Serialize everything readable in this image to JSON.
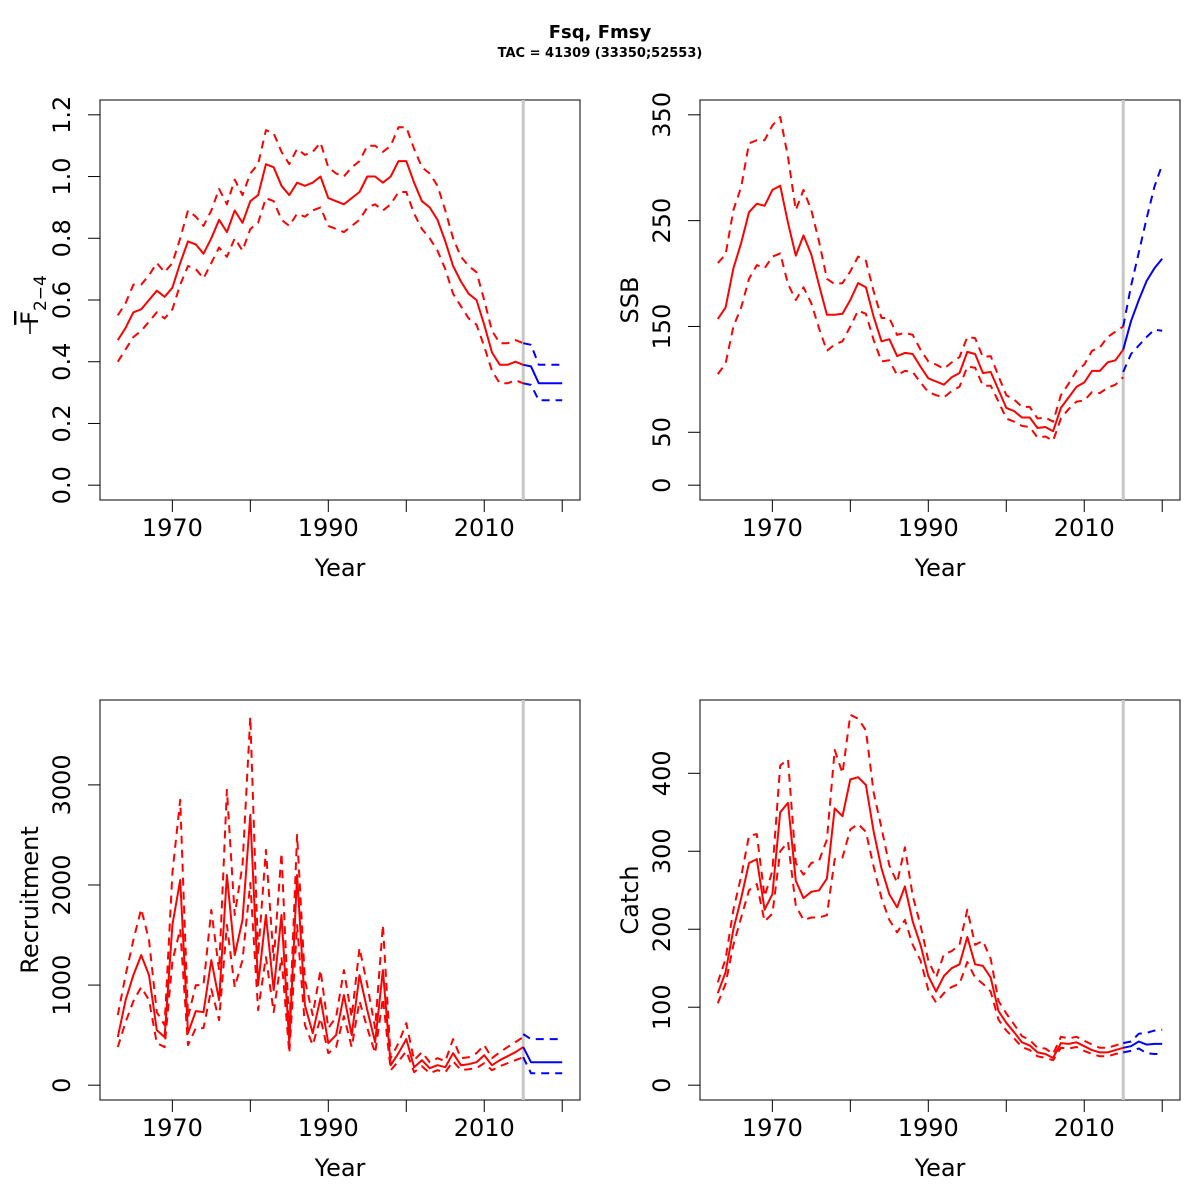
{
  "title": "Fsq, Fmsy",
  "subtitle": "TAC = 41309 (33350;52553)",
  "colors": {
    "history": "#ff0000",
    "forecast": "#0000ff",
    "divider": "#c8c8c8"
  },
  "chart_data": [
    {
      "id": "fbar",
      "type": "line",
      "xlabel": "Year",
      "ylabel": "F2-4",
      "ylabel_main": "F",
      "ylabel_sub": "2−4",
      "xlim": [
        1963,
        2020
      ],
      "ylim": [
        0,
        1.2
      ],
      "xticks": [
        1970,
        1990,
        2010
      ],
      "yticks": [
        0.0,
        0.2,
        0.4,
        0.6,
        0.8,
        1.0,
        1.2
      ],
      "yticklabels": [
        "0.0",
        "0.2",
        "0.4",
        "0.6",
        "0.8",
        "1.0",
        "1.2"
      ],
      "divider_year": 2015,
      "history": {
        "x": [
          1963,
          1964,
          1965,
          1966,
          1967,
          1968,
          1969,
          1970,
          1971,
          1972,
          1973,
          1974,
          1975,
          1976,
          1977,
          1978,
          1979,
          1980,
          1981,
          1982,
          1983,
          1984,
          1985,
          1986,
          1987,
          1988,
          1989,
          1990,
          1991,
          1992,
          1993,
          1994,
          1995,
          1996,
          1997,
          1998,
          1999,
          2000,
          2001,
          2002,
          2003,
          2004,
          2005,
          2006,
          2007,
          2008,
          2009,
          2010,
          2011,
          2012,
          2013,
          2014,
          2015
        ],
        "y": [
          0.47,
          0.51,
          0.56,
          0.57,
          0.6,
          0.63,
          0.61,
          0.64,
          0.72,
          0.79,
          0.78,
          0.75,
          0.8,
          0.86,
          0.82,
          0.89,
          0.85,
          0.92,
          0.94,
          1.04,
          1.03,
          0.97,
          0.94,
          0.98,
          0.97,
          0.98,
          1.0,
          0.93,
          0.92,
          0.91,
          0.93,
          0.95,
          1.0,
          1.0,
          0.98,
          1.0,
          1.05,
          1.05,
          0.98,
          0.92,
          0.9,
          0.86,
          0.79,
          0.71,
          0.66,
          0.62,
          0.6,
          0.52,
          0.43,
          0.39,
          0.39,
          0.4,
          0.39
        ],
        "lower": [
          0.4,
          0.44,
          0.48,
          0.5,
          0.53,
          0.56,
          0.54,
          0.57,
          0.65,
          0.71,
          0.7,
          0.67,
          0.72,
          0.77,
          0.74,
          0.8,
          0.76,
          0.83,
          0.85,
          0.93,
          0.92,
          0.86,
          0.84,
          0.88,
          0.87,
          0.89,
          0.9,
          0.84,
          0.83,
          0.82,
          0.84,
          0.86,
          0.9,
          0.91,
          0.89,
          0.91,
          0.95,
          0.95,
          0.88,
          0.83,
          0.8,
          0.76,
          0.7,
          0.62,
          0.58,
          0.54,
          0.52,
          0.45,
          0.37,
          0.33,
          0.33,
          0.34,
          0.33
        ],
        "upper": [
          0.55,
          0.59,
          0.65,
          0.65,
          0.68,
          0.72,
          0.69,
          0.72,
          0.8,
          0.89,
          0.87,
          0.84,
          0.89,
          0.96,
          0.91,
          0.99,
          0.94,
          1.01,
          1.04,
          1.15,
          1.14,
          1.08,
          1.04,
          1.09,
          1.07,
          1.08,
          1.11,
          1.03,
          1.01,
          1.0,
          1.03,
          1.05,
          1.1,
          1.1,
          1.08,
          1.1,
          1.16,
          1.16,
          1.09,
          1.03,
          1.01,
          0.97,
          0.89,
          0.8,
          0.74,
          0.71,
          0.69,
          0.6,
          0.5,
          0.46,
          0.46,
          0.47,
          0.46
        ]
      },
      "forecast": {
        "x": [
          2015,
          2016,
          2017,
          2018,
          2019,
          2020
        ],
        "y": [
          0.39,
          0.385,
          0.33,
          0.33,
          0.33,
          0.33
        ],
        "lower": [
          0.33,
          0.325,
          0.275,
          0.275,
          0.275,
          0.275
        ],
        "upper": [
          0.46,
          0.455,
          0.39,
          0.39,
          0.39,
          0.39
        ]
      }
    },
    {
      "id": "ssb",
      "type": "line",
      "xlabel": "Year",
      "ylabel": "SSB",
      "xlim": [
        1963,
        2020
      ],
      "ylim": [
        0,
        350
      ],
      "xticks": [
        1970,
        1990,
        2010
      ],
      "yticks": [
        0,
        50,
        150,
        250,
        350
      ],
      "yticklabels": [
        "0",
        "50",
        "150",
        "250",
        "350"
      ],
      "divider_year": 2015,
      "history": {
        "x": [
          1963,
          1964,
          1965,
          1966,
          1967,
          1968,
          1969,
          1970,
          1971,
          1972,
          1973,
          1974,
          1975,
          1976,
          1977,
          1978,
          1979,
          1980,
          1981,
          1982,
          1983,
          1984,
          1985,
          1986,
          1987,
          1988,
          1989,
          1990,
          1991,
          1992,
          1993,
          1994,
          1995,
          1996,
          1997,
          1998,
          1999,
          2000,
          2001,
          2002,
          2003,
          2004,
          2005,
          2006,
          2007,
          2008,
          2009,
          2010,
          2011,
          2012,
          2013,
          2014,
          2015
        ],
        "y": [
          157,
          168,
          205,
          229,
          258,
          266,
          264,
          279,
          283,
          248,
          217,
          236,
          218,
          189,
          161,
          161,
          162,
          175,
          191,
          187,
          159,
          136,
          138,
          122,
          125,
          124,
          112,
          101,
          98,
          95,
          102,
          106,
          126,
          124,
          106,
          107,
          90,
          73,
          70,
          64,
          64,
          54,
          55,
          51,
          73,
          83,
          93,
          97,
          108,
          108,
          116,
          118,
          128
        ],
        "lower": [
          105,
          115,
          150,
          168,
          195,
          208,
          205,
          216,
          219,
          190,
          175,
          187,
          172,
          148,
          127,
          133,
          136,
          150,
          165,
          162,
          137,
          117,
          118,
          104,
          108,
          107,
          97,
          88,
          85,
          83,
          89,
          93,
          112,
          111,
          94,
          94,
          79,
          63,
          60,
          56,
          55,
          45,
          46,
          42,
          63,
          72,
          79,
          80,
          88,
          87,
          92,
          95,
          102
        ],
        "upper": [
          210,
          218,
          260,
          282,
          323,
          326,
          326,
          340,
          348,
          310,
          260,
          279,
          260,
          230,
          195,
          190,
          191,
          202,
          216,
          212,
          183,
          158,
          158,
          142,
          144,
          142,
          128,
          117,
          114,
          110,
          116,
          121,
          140,
          139,
          121,
          122,
          103,
          85,
          81,
          74,
          74,
          63,
          64,
          60,
          85,
          96,
          108,
          114,
          127,
          130,
          140,
          145,
          150
        ]
      },
      "forecast": {
        "x": [
          2015,
          2016,
          2017,
          2018,
          2019,
          2020
        ],
        "y": [
          128,
          155,
          175,
          193,
          205,
          214
        ],
        "lower": [
          107,
          124,
          132,
          140,
          147,
          146
        ],
        "upper": [
          150,
          188,
          220,
          252,
          282,
          303
        ]
      }
    },
    {
      "id": "recruitment",
      "type": "line",
      "xlabel": "Year",
      "ylabel": "Recruitment",
      "xlim": [
        1963,
        2020
      ],
      "ylim": [
        0,
        3700
      ],
      "xticks": [
        1970,
        1990,
        2010
      ],
      "yticks": [
        0,
        1000,
        2000,
        3000
      ],
      "yticklabels": [
        "0",
        "1000",
        "2000",
        "3000"
      ],
      "divider_year": 2015,
      "history": {
        "x": [
          1963,
          1964,
          1965,
          1966,
          1967,
          1968,
          1969,
          1970,
          1971,
          1972,
          1973,
          1974,
          1975,
          1976,
          1977,
          1978,
          1979,
          1980,
          1981,
          1982,
          1983,
          1984,
          1985,
          1986,
          1987,
          1988,
          1989,
          1990,
          1991,
          1992,
          1993,
          1994,
          1995,
          1996,
          1997,
          1998,
          1999,
          2000,
          2001,
          2002,
          2003,
          2004,
          2005,
          2006,
          2007,
          2008,
          2009,
          2010,
          2011,
          2012,
          2013,
          2014,
          2015
        ],
        "y": [
          480,
          850,
          1100,
          1300,
          1100,
          550,
          480,
          1600,
          2050,
          520,
          740,
          730,
          1250,
          850,
          2100,
          1300,
          1650,
          2700,
          1000,
          1700,
          950,
          1700,
          420,
          2100,
          800,
          520,
          870,
          420,
          500,
          900,
          500,
          1100,
          750,
          430,
          1150,
          200,
          320,
          460,
          180,
          250,
          170,
          200,
          180,
          320,
          200,
          210,
          230,
          300,
          200,
          250,
          290,
          330,
          380
        ],
        "lower": [
          380,
          630,
          840,
          980,
          850,
          420,
          380,
          1240,
          1560,
          400,
          570,
          570,
          960,
          650,
          1600,
          980,
          1250,
          2020,
          750,
          1280,
          730,
          1280,
          320,
          1600,
          600,
          400,
          670,
          320,
          380,
          690,
          380,
          840,
          570,
          320,
          870,
          150,
          240,
          340,
          130,
          190,
          120,
          150,
          130,
          240,
          150,
          160,
          170,
          220,
          150,
          190,
          220,
          250,
          280
        ],
        "upper": [
          700,
          1100,
          1450,
          1760,
          1450,
          730,
          600,
          2120,
          2850,
          680,
          1000,
          1000,
          1750,
          1150,
          2950,
          1700,
          2200,
          3680,
          1300,
          2350,
          1250,
          2320,
          540,
          2500,
          1050,
          700,
          1150,
          570,
          680,
          1150,
          680,
          1370,
          1000,
          570,
          1600,
          270,
          420,
          620,
          250,
          330,
          230,
          270,
          240,
          460,
          270,
          280,
          320,
          400,
          270,
          330,
          380,
          430,
          480
        ]
      },
      "forecast": {
        "x": [
          2015,
          2016,
          2017,
          2018,
          2019,
          2020
        ],
        "y": [
          380,
          230,
          230,
          230,
          230,
          230
        ],
        "lower": [
          280,
          120,
          120,
          120,
          120,
          120
        ],
        "upper": [
          510,
          460,
          460,
          460,
          460,
          460
        ]
      }
    },
    {
      "id": "catch",
      "type": "line",
      "xlabel": "Year",
      "ylabel": "Catch",
      "xlim": [
        1963,
        2020
      ],
      "ylim": [
        0,
        475
      ],
      "xticks": [
        1970,
        1990,
        2010
      ],
      "yticks": [
        0,
        100,
        200,
        300,
        400
      ],
      "yticklabels": [
        "0",
        "100",
        "200",
        "300",
        "400"
      ],
      "divider_year": 2015,
      "history": {
        "x": [
          1963,
          1964,
          1965,
          1966,
          1967,
          1968,
          1969,
          1970,
          1971,
          1972,
          1973,
          1974,
          1975,
          1976,
          1977,
          1978,
          1979,
          1980,
          1981,
          1982,
          1983,
          1984,
          1985,
          1986,
          1987,
          1988,
          1989,
          1990,
          1991,
          1992,
          1993,
          1994,
          1995,
          1996,
          1997,
          1998,
          1999,
          2000,
          2001,
          2002,
          2003,
          2004,
          2005,
          2006,
          2007,
          2008,
          2009,
          2010,
          2011,
          2012,
          2013,
          2014,
          2015
        ],
        "y": [
          118,
          145,
          200,
          240,
          285,
          290,
          225,
          245,
          350,
          362,
          262,
          240,
          248,
          250,
          265,
          355,
          345,
          392,
          395,
          385,
          325,
          278,
          245,
          228,
          255,
          210,
          180,
          140,
          120,
          140,
          150,
          155,
          190,
          155,
          153,
          138,
          95,
          80,
          68,
          55,
          51,
          42,
          40,
          35,
          54,
          53,
          55,
          50,
          45,
          42,
          42,
          45,
          48
        ],
        "lower": [
          105,
          130,
          180,
          215,
          250,
          258,
          210,
          220,
          300,
          312,
          230,
          212,
          215,
          215,
          218,
          290,
          292,
          328,
          335,
          325,
          280,
          240,
          212,
          196,
          212,
          180,
          160,
          122,
          106,
          118,
          126,
          130,
          158,
          138,
          130,
          120,
          84,
          70,
          60,
          49,
          45,
          37,
          35,
          32,
          48,
          47,
          49,
          44,
          40,
          37,
          37,
          40,
          42
        ],
        "upper": [
          132,
          162,
          225,
          268,
          320,
          322,
          242,
          275,
          410,
          418,
          285,
          270,
          285,
          288,
          315,
          430,
          400,
          475,
          470,
          455,
          375,
          330,
          282,
          260,
          305,
          243,
          205,
          160,
          138,
          168,
          172,
          180,
          225,
          180,
          185,
          162,
          108,
          92,
          78,
          63,
          58,
          48,
          47,
          40,
          62,
          60,
          62,
          57,
          52,
          48,
          48,
          51,
          54
        ]
      },
      "forecast": {
        "x": [
          2015,
          2016,
          2017,
          2018,
          2019,
          2020
        ],
        "y": [
          48,
          50,
          56,
          52,
          53,
          53
        ],
        "lower": [
          42,
          44,
          47,
          41,
          40,
          40
        ],
        "upper": [
          54,
          56,
          66,
          67,
          70,
          71
        ]
      }
    }
  ]
}
